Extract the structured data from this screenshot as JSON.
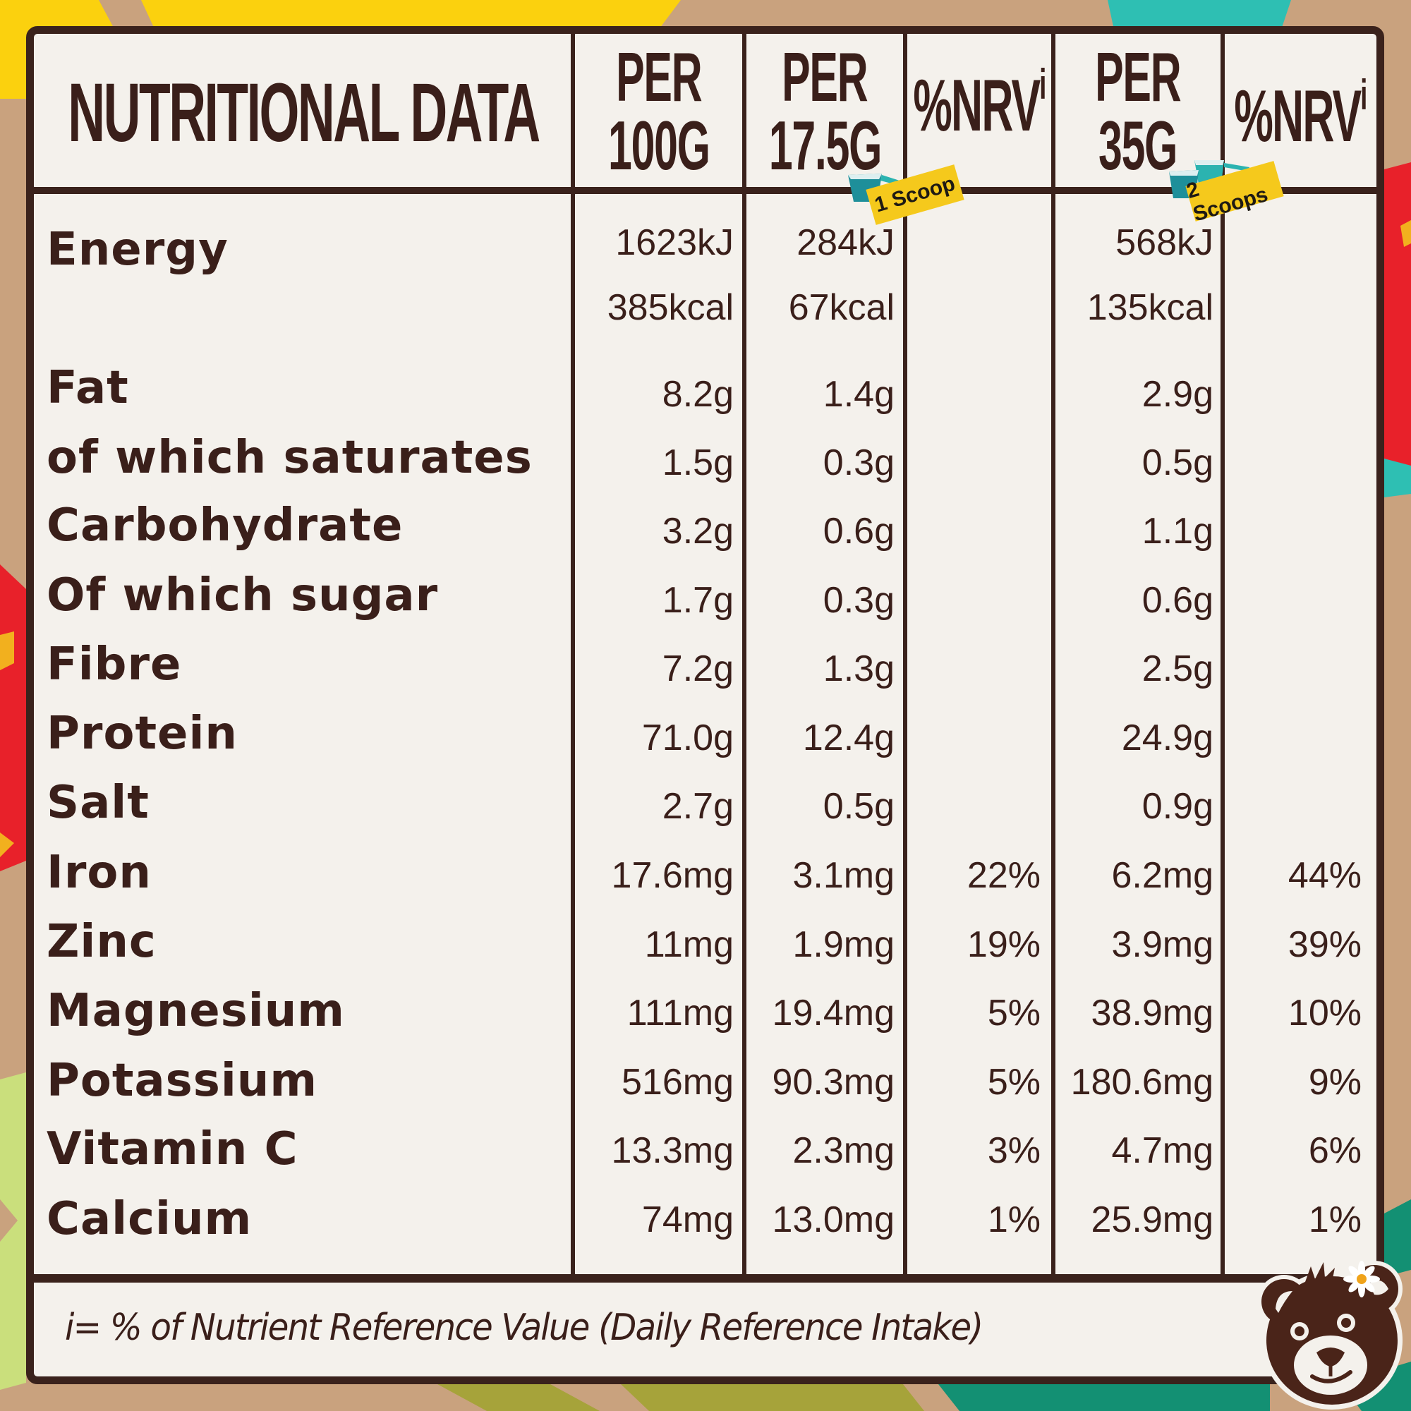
{
  "header": {
    "title": "NUTRITIONAL DATA",
    "columns": [
      {
        "line1": "PER",
        "line2": "100G"
      },
      {
        "line1": "PER",
        "line2": "17.5G"
      },
      {
        "label": "%NRV",
        "sup": "i"
      },
      {
        "line1": "PER",
        "line2": "35G"
      },
      {
        "label": "%NRV",
        "sup": "i"
      }
    ],
    "badges": {
      "one_scoop": "1 Scoop",
      "two_scoops": "2 Scoops"
    }
  },
  "rows": [
    {
      "name": "Energy",
      "per100g": "1623kJ",
      "per17_5g": "284kJ",
      "nrv17_5g": "",
      "per35g": "568kJ",
      "nrv35g": ""
    },
    {
      "name": "",
      "per100g": "385kcal",
      "per17_5g": "67kcal",
      "nrv17_5g": "",
      "per35g": "135kcal",
      "nrv35g": ""
    },
    {
      "name": "Fat",
      "per100g": "8.2g",
      "per17_5g": "1.4g",
      "nrv17_5g": "",
      "per35g": "2.9g",
      "nrv35g": ""
    },
    {
      "name": "of which saturates",
      "per100g": "1.5g",
      "per17_5g": "0.3g",
      "nrv17_5g": "",
      "per35g": "0.5g",
      "nrv35g": ""
    },
    {
      "name": "Carbohydrate",
      "per100g": "3.2g",
      "per17_5g": "0.6g",
      "nrv17_5g": "",
      "per35g": "1.1g",
      "nrv35g": ""
    },
    {
      "name": "Of which sugar",
      "per100g": "1.7g",
      "per17_5g": "0.3g",
      "nrv17_5g": "",
      "per35g": "0.6g",
      "nrv35g": ""
    },
    {
      "name": "Fibre",
      "per100g": "7.2g",
      "per17_5g": "1.3g",
      "nrv17_5g": "",
      "per35g": "2.5g",
      "nrv35g": ""
    },
    {
      "name": "Protein",
      "per100g": "71.0g",
      "per17_5g": "12.4g",
      "nrv17_5g": "",
      "per35g": "24.9g",
      "nrv35g": ""
    },
    {
      "name": "Salt",
      "per100g": "2.7g",
      "per17_5g": "0.5g",
      "nrv17_5g": "",
      "per35g": "0.9g",
      "nrv35g": ""
    },
    {
      "name": "Iron",
      "per100g": "17.6mg",
      "per17_5g": "3.1mg",
      "nrv17_5g": "22%",
      "per35g": "6.2mg",
      "nrv35g": "44%"
    },
    {
      "name": "Zinc",
      "per100g": "11mg",
      "per17_5g": "1.9mg",
      "nrv17_5g": "19%",
      "per35g": "3.9mg",
      "nrv35g": "39%"
    },
    {
      "name": "Magnesium",
      "per100g": "111mg",
      "per17_5g": "19.4mg",
      "nrv17_5g": "5%",
      "per35g": "38.9mg",
      "nrv35g": "10%"
    },
    {
      "name": "Potassium",
      "per100g": "516mg",
      "per17_5g": "90.3mg",
      "nrv17_5g": "5%",
      "per35g": "180.6mg",
      "nrv35g": "9%"
    },
    {
      "name": "Vitamin C",
      "per100g": "13.3mg",
      "per17_5g": "2.3mg",
      "nrv17_5g": "3%",
      "per35g": "4.7mg",
      "nrv35g": "6%"
    },
    {
      "name": "Calcium",
      "per100g": "74mg",
      "per17_5g": "13.0mg",
      "nrv17_5g": "1%",
      "per35g": "25.9mg",
      "nrv35g": "1%"
    }
  ],
  "footer": {
    "note": "i= % of Nutrient Reference Value (Daily Reference Intake)"
  },
  "colors": {
    "ink": "#3A1F1A",
    "border": "#3A221C",
    "panel": "#F4F1EC",
    "kraft": "#C9A27E",
    "badge_yellow": "#F5C91C",
    "scoop_teal": "#1E8F9A"
  },
  "icons": [
    "scoop-icon",
    "bear-mascot-icon",
    "daisy-icon"
  ]
}
